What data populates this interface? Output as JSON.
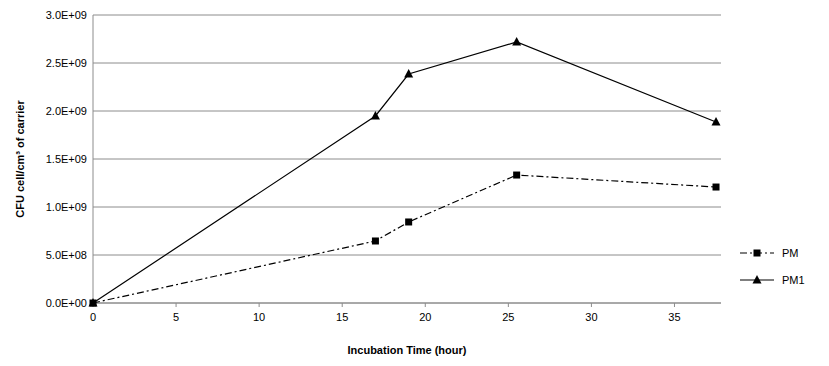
{
  "chart_data": {
    "type": "line",
    "x_label": "Incubation Time (hour)",
    "y_label": "CFU cell/cm³ of carrier",
    "x": [
      0,
      17,
      19,
      25.5,
      37.5
    ],
    "series": [
      {
        "name": "PM",
        "color": "#000000",
        "marker": "square",
        "line_style": "dashdot",
        "values": [
          0,
          646000000,
          844000000,
          1333000000,
          1208000000
        ]
      },
      {
        "name": "PM1",
        "color": "#000000",
        "marker": "triangle",
        "line_style": "solid",
        "values": [
          0,
          1948000000,
          2385000000,
          2719000000,
          1885000000
        ]
      }
    ],
    "xlim": [
      0,
      37.8
    ],
    "xticks": [
      0,
      5,
      10,
      15,
      20,
      25,
      30,
      35
    ],
    "ylim": [
      0,
      3000000000
    ],
    "yticks": [
      {
        "value": 0,
        "label": "0.0E+00"
      },
      {
        "value": 500000000,
        "label": "5.0E+08"
      },
      {
        "value": 1000000000,
        "label": "1.0E+09"
      },
      {
        "value": 1500000000,
        "label": "1.5E+09"
      },
      {
        "value": 2000000000,
        "label": "2.0E+09"
      },
      {
        "value": 2500000000,
        "label": "2.5E+09"
      },
      {
        "value": 3000000000,
        "label": "3.0E+09"
      }
    ],
    "grid": true,
    "legend": "right"
  }
}
